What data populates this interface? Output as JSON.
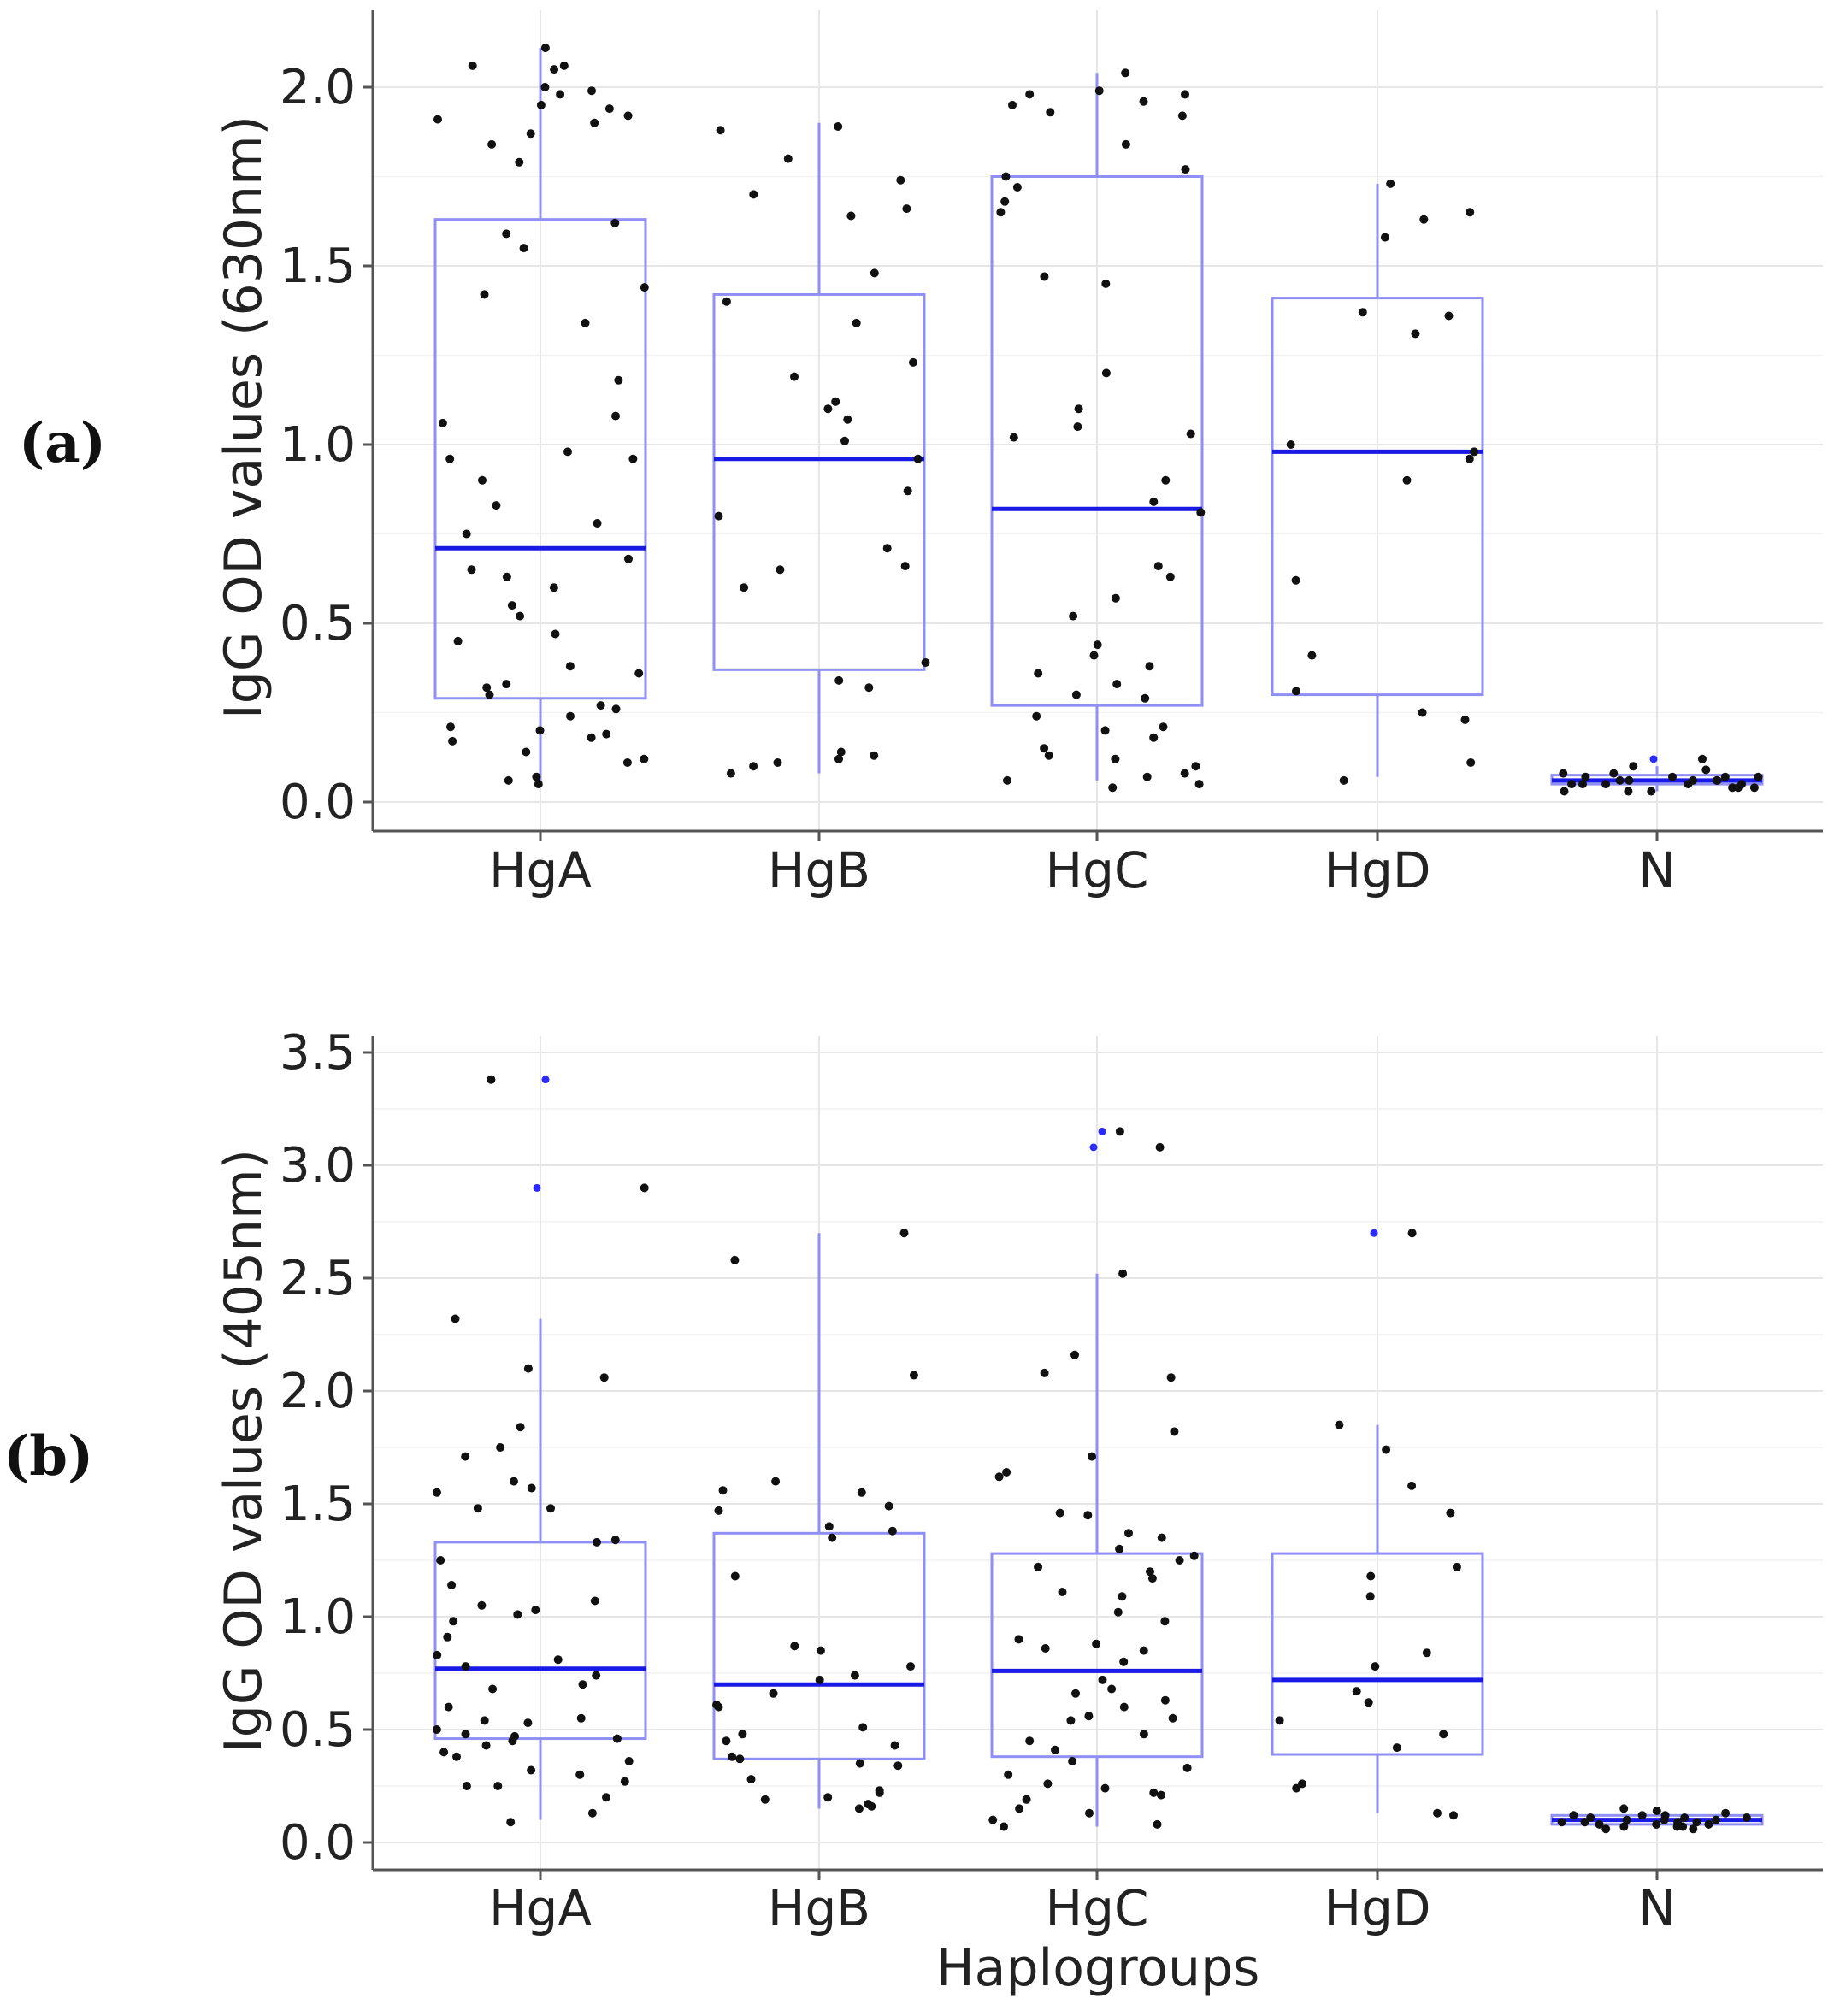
{
  "figure": {
    "panels": [
      {
        "label": "(a)",
        "ylabel": "IgG OD values (630nm)",
        "xlabel": "",
        "ticks": [
          "0.0",
          "0.5",
          "1.0",
          "1.5",
          "2.0"
        ]
      },
      {
        "label": "(b)",
        "ylabel": "IgG OD values (405nm)",
        "xlabel": "Haplogroups",
        "ticks": [
          "0.0",
          "0.5",
          "1.0",
          "1.5",
          "2.0",
          "2.5",
          "3.0",
          "3.5"
        ]
      }
    ]
  },
  "colors": {
    "box": "#8f8ff5",
    "median": "#1a1ae6",
    "points": "#111111",
    "outliers": "#2a2aff"
  },
  "chart_data": [
    {
      "type": "box",
      "title": "",
      "xlabel": "",
      "ylabel": "IgG OD values (630nm)",
      "ylim": [
        -0.08,
        2.2
      ],
      "yticks": [
        0.0,
        0.5,
        1.0,
        1.5,
        2.0
      ],
      "categories": [
        "HgA",
        "HgB",
        "HgC",
        "HgD",
        "N"
      ],
      "boxes": [
        {
          "q1": 0.29,
          "median": 0.71,
          "q3": 1.63,
          "whisker_low": 0.05,
          "whisker_high": 2.11,
          "outliers": []
        },
        {
          "q1": 0.37,
          "median": 0.96,
          "q3": 1.42,
          "whisker_low": 0.08,
          "whisker_high": 1.9,
          "outliers": []
        },
        {
          "q1": 0.27,
          "median": 0.82,
          "q3": 1.75,
          "whisker_low": 0.06,
          "whisker_high": 2.04,
          "outliers": []
        },
        {
          "q1": 0.3,
          "median": 0.98,
          "q3": 1.41,
          "whisker_low": 0.07,
          "whisker_high": 1.73,
          "outliers": []
        },
        {
          "q1": 0.05,
          "median": 0.06,
          "q3": 0.075,
          "whisker_low": 0.03,
          "whisker_high": 0.1,
          "outliers": [
            0.12
          ]
        }
      ],
      "points": [
        [
          2.06,
          1.99,
          2.05,
          1.87,
          1.84,
          1.94,
          1.9,
          1.95,
          2.11,
          2.0,
          1.91,
          1.98,
          2.06,
          1.79,
          1.62,
          1.59,
          1.55,
          1.42,
          1.44,
          1.34,
          1.18,
          1.08,
          1.06,
          0.98,
          0.96,
          0.9,
          0.78,
          0.75,
          0.68,
          0.65,
          0.63,
          0.6,
          0.55,
          0.52,
          0.47,
          0.45,
          0.38,
          0.36,
          0.32,
          0.3,
          0.27,
          0.26,
          0.24,
          0.21,
          0.2,
          0.19,
          0.18,
          0.17,
          0.14,
          0.12,
          0.11,
          0.07,
          0.06,
          0.05,
          0.96,
          1.92,
          0.83,
          0.33
        ],
        [
          1.89,
          1.88,
          1.8,
          1.74,
          1.7,
          1.66,
          1.64,
          1.48,
          1.4,
          1.34,
          1.23,
          1.12,
          1.1,
          1.07,
          1.01,
          0.96,
          0.87,
          0.8,
          0.71,
          0.66,
          0.65,
          0.6,
          0.39,
          0.34,
          0.32,
          0.14,
          0.13,
          0.12,
          0.11,
          0.1,
          0.08,
          1.19
        ],
        [
          2.04,
          1.99,
          1.98,
          1.96,
          1.95,
          1.93,
          1.92,
          1.84,
          1.77,
          1.75,
          1.72,
          1.68,
          1.65,
          1.47,
          1.45,
          1.2,
          1.1,
          1.05,
          1.03,
          1.02,
          0.9,
          0.84,
          0.81,
          0.66,
          0.63,
          0.57,
          0.52,
          0.44,
          0.41,
          0.38,
          0.36,
          0.33,
          0.3,
          0.24,
          0.21,
          0.2,
          0.18,
          0.15,
          0.13,
          0.12,
          0.1,
          0.08,
          0.07,
          0.06,
          0.05,
          0.04,
          1.98,
          0.29
        ],
        [
          1.73,
          1.65,
          1.63,
          1.58,
          1.37,
          1.36,
          1.31,
          1.0,
          0.98,
          0.96,
          0.9,
          0.62,
          0.41,
          0.31,
          0.25,
          0.23,
          0.11,
          0.06
        ],
        [
          0.12,
          0.1,
          0.09,
          0.08,
          0.08,
          0.07,
          0.07,
          0.07,
          0.06,
          0.06,
          0.06,
          0.06,
          0.05,
          0.05,
          0.05,
          0.05,
          0.04,
          0.04,
          0.04,
          0.03,
          0.03,
          0.03,
          0.06,
          0.07,
          0.05
        ]
      ]
    },
    {
      "type": "box",
      "title": "",
      "xlabel": "Haplogroups",
      "ylabel": "IgG OD values (405nm)",
      "ylim": [
        -0.08,
        3.6
      ],
      "yticks": [
        0.0,
        0.5,
        1.0,
        1.5,
        2.0,
        2.5,
        3.0,
        3.5
      ],
      "categories": [
        "HgA",
        "HgB",
        "HgC",
        "HgD",
        "N"
      ],
      "boxes": [
        {
          "q1": 0.46,
          "median": 0.77,
          "q3": 1.33,
          "whisker_low": 0.1,
          "whisker_high": 2.32,
          "outliers": [
            2.9,
            3.38
          ]
        },
        {
          "q1": 0.37,
          "median": 0.7,
          "q3": 1.37,
          "whisker_low": 0.15,
          "whisker_high": 2.7,
          "outliers": []
        },
        {
          "q1": 0.38,
          "median": 0.76,
          "q3": 1.28,
          "whisker_low": 0.07,
          "whisker_high": 2.52,
          "outliers": [
            3.08,
            3.15
          ]
        },
        {
          "q1": 0.39,
          "median": 0.72,
          "q3": 1.28,
          "whisker_low": 0.13,
          "whisker_high": 1.85,
          "outliers": [
            2.7
          ]
        },
        {
          "q1": 0.08,
          "median": 0.1,
          "q3": 0.12,
          "whisker_low": 0.06,
          "whisker_high": 0.15,
          "outliers": []
        }
      ],
      "points": [
        [
          3.38,
          2.9,
          2.32,
          2.1,
          2.06,
          1.84,
          1.75,
          1.71,
          1.6,
          1.57,
          1.55,
          1.48,
          1.48,
          1.34,
          1.33,
          1.25,
          1.14,
          1.07,
          1.03,
          1.05,
          0.98,
          0.91,
          0.83,
          0.81,
          0.78,
          0.74,
          0.7,
          0.68,
          0.6,
          0.55,
          0.53,
          0.5,
          0.48,
          0.47,
          0.46,
          0.45,
          0.43,
          0.38,
          0.36,
          0.32,
          0.3,
          0.27,
          0.25,
          0.25,
          0.2,
          0.13,
          0.09,
          1.01,
          0.54,
          0.4
        ],
        [
          2.7,
          2.58,
          2.07,
          1.6,
          1.56,
          1.55,
          1.49,
          1.47,
          1.4,
          1.38,
          1.35,
          1.18,
          0.87,
          0.85,
          0.78,
          0.74,
          0.72,
          0.66,
          0.61,
          0.6,
          0.51,
          0.48,
          0.45,
          0.43,
          0.38,
          0.37,
          0.35,
          0.34,
          0.28,
          0.23,
          0.22,
          0.2,
          0.19,
          0.17,
          0.16,
          0.15
        ],
        [
          3.15,
          3.08,
          2.52,
          2.16,
          2.08,
          2.06,
          1.82,
          1.71,
          1.64,
          1.62,
          1.46,
          1.45,
          1.37,
          1.35,
          1.3,
          1.27,
          1.25,
          1.22,
          1.2,
          1.17,
          1.11,
          1.09,
          1.02,
          0.98,
          0.9,
          0.88,
          0.86,
          0.8,
          0.72,
          0.68,
          0.66,
          0.6,
          0.56,
          0.54,
          0.48,
          0.45,
          0.41,
          0.36,
          0.33,
          0.3,
          0.26,
          0.24,
          0.22,
          0.21,
          0.19,
          0.15,
          0.13,
          0.1,
          0.08,
          0.07,
          0.63,
          0.85,
          0.55
        ],
        [
          2.7,
          1.85,
          1.74,
          1.58,
          1.46,
          1.22,
          1.18,
          1.09,
          0.84,
          0.78,
          0.67,
          0.62,
          0.54,
          0.48,
          0.42,
          0.26,
          0.24,
          0.13,
          0.12
        ],
        [
          0.15,
          0.14,
          0.13,
          0.12,
          0.12,
          0.11,
          0.11,
          0.1,
          0.1,
          0.1,
          0.09,
          0.09,
          0.09,
          0.08,
          0.08,
          0.08,
          0.07,
          0.07,
          0.07,
          0.06,
          0.06,
          0.11,
          0.12,
          0.09
        ]
      ]
    }
  ]
}
